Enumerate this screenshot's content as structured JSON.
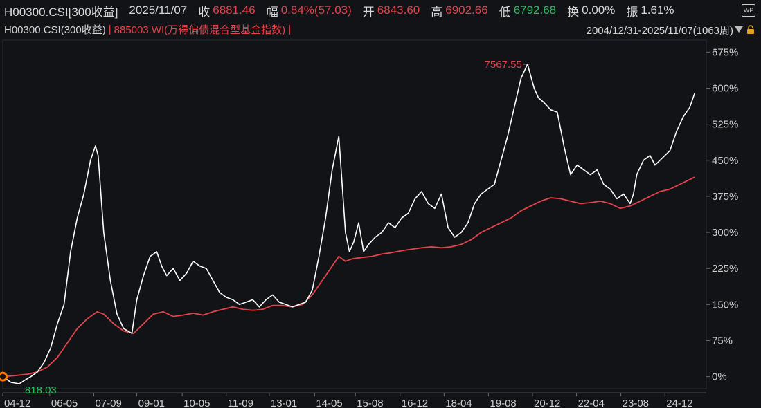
{
  "header": {
    "code": "H00300.CSI[300收益]",
    "date": "2025/11/07",
    "close_label": "收",
    "close_value": "6881.46",
    "change_label": "幅",
    "change_value": "0.84%(57.03)",
    "open_label": "开",
    "open_value": "6843.60",
    "high_label": "高",
    "high_value": "6902.66",
    "low_label": "低",
    "low_value": "6792.68",
    "turnover_label": "换",
    "turnover_value": "0.00%",
    "amplitude_label": "振",
    "amplitude_value": "1.61%",
    "wp_icon": "WP"
  },
  "legend_bar": {
    "series_a": "H00300.CSI(300收益)",
    "separator": "|",
    "series_b": "885003.WI(万得偏债混合型基金指数)",
    "range": "2004/12/31-2025/11/07(1063周)"
  },
  "colors": {
    "series_a": "#ffffff",
    "series_b": "#e8424b",
    "high_label": "#e8424b",
    "low_label": "#25c15c",
    "start_marker": "#ff7a00"
  },
  "chart_data": {
    "type": "line",
    "y_unit": "%",
    "ylim": [
      -25,
      700
    ],
    "y_ticks": [
      "675%",
      "600%",
      "525%",
      "450%",
      "375%",
      "300%",
      "225%",
      "150%",
      "75%",
      "0%"
    ],
    "y_tick_values": [
      675,
      600,
      525,
      450,
      375,
      300,
      225,
      150,
      75,
      0
    ],
    "xlim": [
      2004.95,
      2026.2
    ],
    "x_ticks": [
      "04-12",
      "06-05",
      "07-09",
      "09-01",
      "10-05",
      "11-09",
      "13-01",
      "14-05",
      "15-08",
      "16-12",
      "18-04",
      "19-08",
      "20-12",
      "22-04",
      "23-08",
      "24-12"
    ],
    "x_tick_values": [
      2004.95,
      2006.37,
      2007.7,
      2009.0,
      2010.37,
      2011.7,
      2013.0,
      2014.37,
      2015.6,
      2016.95,
      2018.28,
      2019.62,
      2020.95,
      2022.28,
      2023.62,
      2024.95
    ],
    "annotations": {
      "max_label": "7567.55",
      "min_label": "818.03"
    },
    "series": [
      {
        "color": "#ffffff",
        "x": [
          2004.95,
          2005.2,
          2005.45,
          2005.6,
          2005.8,
          2006.0,
          2006.2,
          2006.4,
          2006.6,
          2006.8,
          2007.0,
          2007.2,
          2007.4,
          2007.6,
          2007.75,
          2007.83,
          2008.0,
          2008.2,
          2008.4,
          2008.6,
          2008.85,
          2009.0,
          2009.2,
          2009.4,
          2009.6,
          2009.75,
          2009.9,
          2010.1,
          2010.3,
          2010.5,
          2010.7,
          2010.9,
          2011.1,
          2011.3,
          2011.5,
          2011.7,
          2011.9,
          2012.1,
          2012.3,
          2012.5,
          2012.7,
          2012.9,
          2013.1,
          2013.3,
          2013.5,
          2013.7,
          2013.9,
          2014.1,
          2014.3,
          2014.5,
          2014.7,
          2014.9,
          2015.1,
          2015.3,
          2015.42,
          2015.55,
          2015.7,
          2015.85,
          2016.0,
          2016.2,
          2016.4,
          2016.6,
          2016.8,
          2017.0,
          2017.2,
          2017.4,
          2017.6,
          2017.8,
          2018.0,
          2018.2,
          2018.4,
          2018.6,
          2018.8,
          2019.0,
          2019.2,
          2019.4,
          2019.6,
          2019.8,
          2020.0,
          2020.2,
          2020.4,
          2020.6,
          2020.8,
          2021.0,
          2021.13,
          2021.3,
          2021.5,
          2021.7,
          2021.9,
          2022.1,
          2022.3,
          2022.5,
          2022.7,
          2022.9,
          2023.1,
          2023.3,
          2023.5,
          2023.7,
          2023.9,
          2024.0,
          2024.1,
          2024.3,
          2024.5,
          2024.65,
          2024.8,
          2024.95,
          2025.1,
          2025.3,
          2025.5,
          2025.7,
          2025.85
        ],
        "values": [
          0,
          -12,
          -15,
          -8,
          0,
          10,
          30,
          60,
          110,
          150,
          260,
          330,
          380,
          450,
          480,
          460,
          300,
          200,
          130,
          100,
          90,
          160,
          210,
          250,
          260,
          230,
          210,
          225,
          200,
          215,
          240,
          230,
          225,
          200,
          175,
          165,
          160,
          150,
          155,
          160,
          145,
          160,
          170,
          155,
          150,
          145,
          150,
          155,
          180,
          250,
          330,
          430,
          500,
          300,
          260,
          280,
          320,
          260,
          275,
          290,
          300,
          320,
          310,
          330,
          340,
          370,
          385,
          360,
          350,
          380,
          310,
          290,
          300,
          320,
          360,
          380,
          390,
          400,
          450,
          500,
          560,
          620,
          650,
          600,
          580,
          570,
          555,
          550,
          480,
          420,
          440,
          430,
          420,
          430,
          400,
          390,
          370,
          380,
          360,
          380,
          420,
          450,
          460,
          440,
          450,
          460,
          470,
          510,
          540,
          560,
          590
        ]
      },
      {
        "color": "#e8424b",
        "x": [
          2004.95,
          2005.3,
          2005.7,
          2006.0,
          2006.3,
          2006.6,
          2006.9,
          2007.2,
          2007.5,
          2007.8,
          2008.0,
          2008.3,
          2008.6,
          2008.9,
          2009.2,
          2009.5,
          2009.8,
          2010.1,
          2010.4,
          2010.7,
          2011.0,
          2011.3,
          2011.6,
          2011.9,
          2012.2,
          2012.5,
          2012.8,
          2013.1,
          2013.4,
          2013.7,
          2014.0,
          2014.3,
          2014.6,
          2014.9,
          2015.1,
          2015.3,
          2015.5,
          2015.8,
          2016.1,
          2016.4,
          2016.7,
          2017.0,
          2017.3,
          2017.6,
          2017.9,
          2018.2,
          2018.5,
          2018.8,
          2019.1,
          2019.4,
          2019.7,
          2020.0,
          2020.3,
          2020.6,
          2020.9,
          2021.2,
          2021.5,
          2021.8,
          2022.1,
          2022.4,
          2022.7,
          2023.0,
          2023.3,
          2023.6,
          2023.9,
          2024.2,
          2024.5,
          2024.8,
          2025.1,
          2025.4,
          2025.7,
          2025.85
        ],
        "values": [
          0,
          2,
          5,
          10,
          20,
          40,
          70,
          100,
          120,
          135,
          130,
          110,
          95,
          90,
          110,
          130,
          135,
          125,
          128,
          132,
          128,
          135,
          140,
          145,
          140,
          138,
          140,
          148,
          148,
          145,
          150,
          170,
          200,
          230,
          250,
          240,
          245,
          248,
          250,
          255,
          258,
          262,
          265,
          268,
          270,
          268,
          270,
          275,
          285,
          300,
          310,
          320,
          330,
          345,
          355,
          365,
          372,
          370,
          365,
          360,
          362,
          365,
          360,
          350,
          355,
          365,
          375,
          385,
          390,
          400,
          410,
          415
        ]
      }
    ]
  }
}
